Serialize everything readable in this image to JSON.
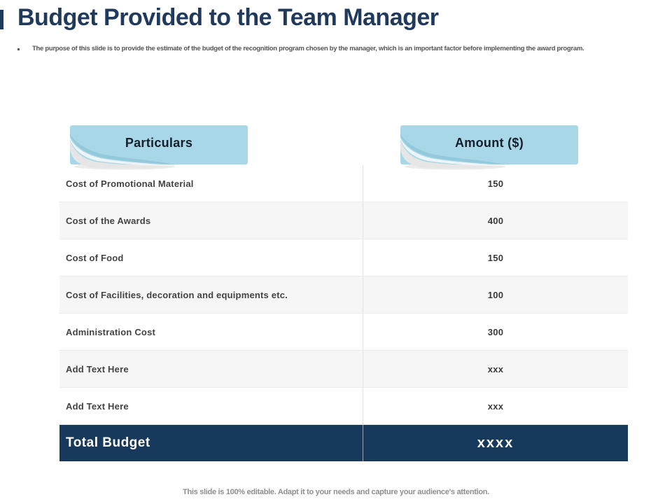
{
  "slide": {
    "title": "Budget Provided to the Team Manager",
    "bullet_text": "The purpose of this slide is to provide the estimate of the budget of the recognition program chosen by the manager, which is an important factor before implementing the award program.",
    "footer_note": "This slide is 100% editable. Adapt it to your needs and capture your audience's attention."
  },
  "table": {
    "headers": {
      "particulars": "Particulars",
      "amount": "Amount ($)"
    },
    "rows": [
      {
        "particulars": "Cost of Promotional Material",
        "amount": "150"
      },
      {
        "particulars": "Cost of the Awards",
        "amount": "400"
      },
      {
        "particulars": "Cost of Food",
        "amount": "150"
      },
      {
        "particulars": "Cost of Facilities, decoration and equipments etc.",
        "amount": "100"
      },
      {
        "particulars": "Administration Cost",
        "amount": "300"
      },
      {
        "particulars": "Add Text Here",
        "amount": "xxx"
      },
      {
        "particulars": "Add Text Here",
        "amount": "xxx"
      }
    ],
    "total": {
      "label": "Total Budget",
      "amount": "xxxx"
    }
  },
  "colors": {
    "accent_navy": "#1f3a5c",
    "banner_blue": "#a8d8e7",
    "total_row_navy": "#17395c",
    "row_alt_bg": "#f6f6f6",
    "text_dark": "#434343",
    "divider_gray": "#e3e3e3",
    "footer_gray": "#8f8f8f"
  }
}
